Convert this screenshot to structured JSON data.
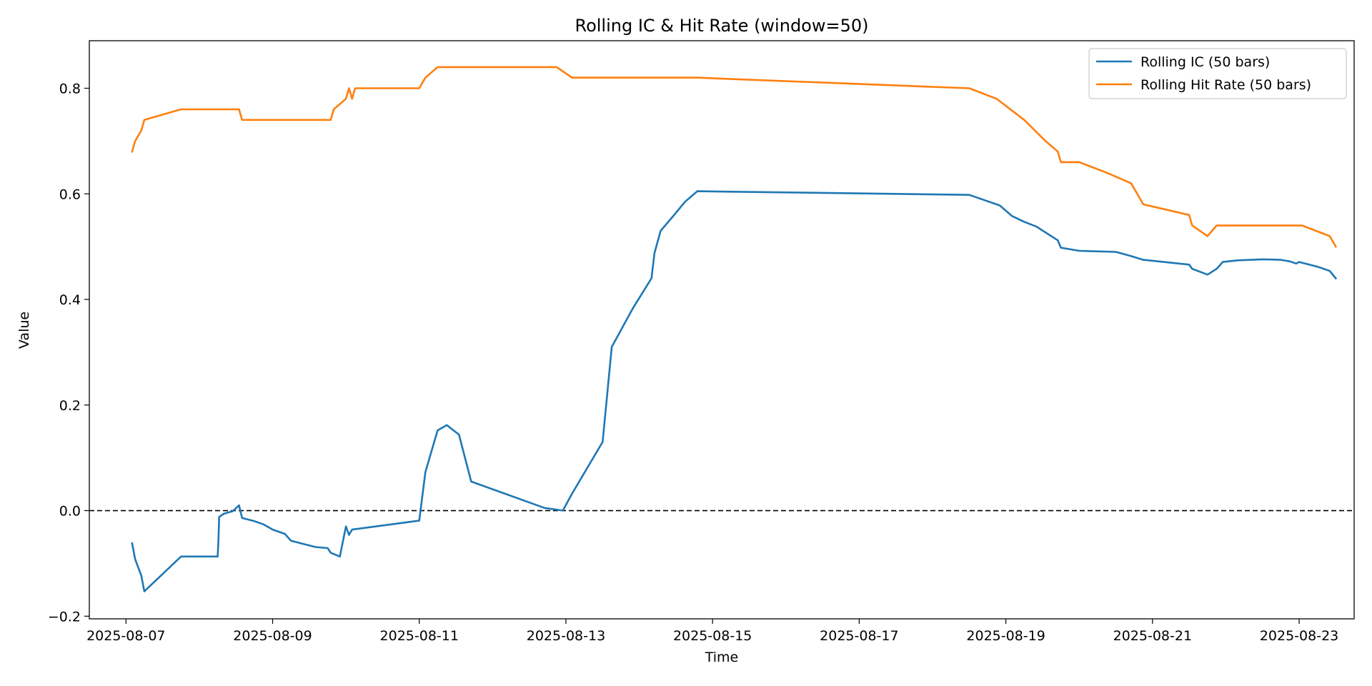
{
  "chart_data": {
    "type": "line",
    "title": "Rolling IC & Hit Rate (window=50)",
    "xlabel": "Time",
    "ylabel": "Value",
    "xlim": [
      "2025-08-06 12:00",
      "2025-08-23 18:00"
    ],
    "ylim": [
      -0.205,
      0.89
    ],
    "xticks": [
      "2025-08-07",
      "2025-08-09",
      "2025-08-11",
      "2025-08-13",
      "2025-08-15",
      "2025-08-17",
      "2025-08-19",
      "2025-08-21",
      "2025-08-23"
    ],
    "yticks": [
      -0.2,
      0.0,
      0.2,
      0.4,
      0.6,
      0.8
    ],
    "yticklabels": [
      "−0.2",
      "0.0",
      "0.2",
      "0.4",
      "0.6",
      "0.8"
    ],
    "grid": false,
    "legend": "top-right",
    "reference_line": {
      "y": 0.0,
      "style": "dashed",
      "color": "#000000"
    },
    "series": [
      {
        "name": "Rolling IC (50 bars)",
        "color": "#1f77b4",
        "points": [
          [
            "2025-08-07 02:00",
            -0.062
          ],
          [
            "2025-08-07 03:00",
            -0.092
          ],
          [
            "2025-08-07 05:00",
            -0.123
          ],
          [
            "2025-08-07 06:00",
            -0.153
          ],
          [
            "2025-08-07 18:00",
            -0.087
          ],
          [
            "2025-08-08 06:00",
            -0.087
          ],
          [
            "2025-08-08 06:15",
            -0.06
          ],
          [
            "2025-08-08 06:30",
            -0.012
          ],
          [
            "2025-08-08 08:00",
            -0.006
          ],
          [
            "2025-08-08 11:00",
            -0.001
          ],
          [
            "2025-08-08 13:00",
            0.01
          ],
          [
            "2025-08-08 14:00",
            -0.014
          ],
          [
            "2025-08-08 18:00",
            -0.02
          ],
          [
            "2025-08-08 21:00",
            -0.026
          ],
          [
            "2025-08-09 00:00",
            -0.036
          ],
          [
            "2025-08-09 04:00",
            -0.044
          ],
          [
            "2025-08-09 06:00",
            -0.057
          ],
          [
            "2025-08-09 14:00",
            -0.069
          ],
          [
            "2025-08-09 18:00",
            -0.071
          ],
          [
            "2025-08-09 19:00",
            -0.08
          ],
          [
            "2025-08-09 22:00",
            -0.087
          ],
          [
            "2025-08-10 00:00",
            -0.03
          ],
          [
            "2025-08-10 01:00",
            -0.046
          ],
          [
            "2025-08-10 02:00",
            -0.036
          ],
          [
            "2025-08-11 00:00",
            -0.019
          ],
          [
            "2025-08-11 02:00",
            0.073
          ],
          [
            "2025-08-11 06:00",
            0.152
          ],
          [
            "2025-08-11 09:00",
            0.162
          ],
          [
            "2025-08-11 13:00",
            0.144
          ],
          [
            "2025-08-11 17:00",
            0.055
          ],
          [
            "2025-08-12 17:00",
            0.005
          ],
          [
            "2025-08-12 23:00",
            0.0
          ],
          [
            "2025-08-13 02:00",
            0.032
          ],
          [
            "2025-08-13 12:00",
            0.13
          ],
          [
            "2025-08-13 15:00",
            0.31
          ],
          [
            "2025-08-13 22:00",
            0.384
          ],
          [
            "2025-08-14 04:00",
            0.44
          ],
          [
            "2025-08-14 05:00",
            0.488
          ],
          [
            "2025-08-14 07:00",
            0.53
          ],
          [
            "2025-08-14 11:00",
            0.557
          ],
          [
            "2025-08-14 15:00",
            0.585
          ],
          [
            "2025-08-14 19:00",
            0.605
          ],
          [
            "2025-08-18 12:00",
            0.598
          ],
          [
            "2025-08-18 22:00",
            0.578
          ],
          [
            "2025-08-19 02:00",
            0.558
          ],
          [
            "2025-08-19 06:00",
            0.547
          ],
          [
            "2025-08-19 10:00",
            0.538
          ],
          [
            "2025-08-19 17:00",
            0.512
          ],
          [
            "2025-08-19 18:00",
            0.498
          ],
          [
            "2025-08-20 00:00",
            0.492
          ],
          [
            "2025-08-20 12:00",
            0.49
          ],
          [
            "2025-08-20 17:00",
            0.482
          ],
          [
            "2025-08-20 21:00",
            0.475
          ],
          [
            "2025-08-21 12:00",
            0.466
          ],
          [
            "2025-08-21 13:00",
            0.458
          ],
          [
            "2025-08-21 18:00",
            0.447
          ],
          [
            "2025-08-21 21:00",
            0.458
          ],
          [
            "2025-08-21 23:00",
            0.471
          ],
          [
            "2025-08-22 04:00",
            0.474
          ],
          [
            "2025-08-22 12:00",
            0.476
          ],
          [
            "2025-08-22 18:00",
            0.475
          ],
          [
            "2025-08-22 21:00",
            0.472
          ],
          [
            "2025-08-22 23:00",
            0.468
          ],
          [
            "2025-08-23 00:00",
            0.471
          ],
          [
            "2025-08-23 06:00",
            0.462
          ],
          [
            "2025-08-23 10:00",
            0.454
          ],
          [
            "2025-08-23 12:00",
            0.44
          ]
        ]
      },
      {
        "name": "Rolling Hit Rate (50 bars)",
        "color": "#ff7f0e",
        "points": [
          [
            "2025-08-07 02:00",
            0.68
          ],
          [
            "2025-08-07 03:00",
            0.7
          ],
          [
            "2025-08-07 05:00",
            0.72
          ],
          [
            "2025-08-07 06:00",
            0.74
          ],
          [
            "2025-08-07 18:00",
            0.76
          ],
          [
            "2025-08-08 13:00",
            0.76
          ],
          [
            "2025-08-08 14:00",
            0.74
          ],
          [
            "2025-08-09 19:00",
            0.74
          ],
          [
            "2025-08-09 20:00",
            0.76
          ],
          [
            "2025-08-10 00:00",
            0.78
          ],
          [
            "2025-08-10 01:00",
            0.8
          ],
          [
            "2025-08-10 02:00",
            0.78
          ],
          [
            "2025-08-10 03:00",
            0.8
          ],
          [
            "2025-08-11 00:00",
            0.8
          ],
          [
            "2025-08-11 02:00",
            0.82
          ],
          [
            "2025-08-11 06:00",
            0.84
          ],
          [
            "2025-08-12 21:00",
            0.84
          ],
          [
            "2025-08-13 02:00",
            0.82
          ],
          [
            "2025-08-14 19:00",
            0.82
          ],
          [
            "2025-08-18 12:00",
            0.8
          ],
          [
            "2025-08-18 21:00",
            0.78
          ],
          [
            "2025-08-19 06:00",
            0.74
          ],
          [
            "2025-08-19 13:00",
            0.7
          ],
          [
            "2025-08-19 17:00",
            0.68
          ],
          [
            "2025-08-19 18:00",
            0.66
          ],
          [
            "2025-08-20 00:00",
            0.66
          ],
          [
            "2025-08-20 09:00",
            0.64
          ],
          [
            "2025-08-20 17:00",
            0.62
          ],
          [
            "2025-08-20 21:00",
            0.58
          ],
          [
            "2025-08-21 12:00",
            0.56
          ],
          [
            "2025-08-21 13:00",
            0.54
          ],
          [
            "2025-08-21 18:00",
            0.52
          ],
          [
            "2025-08-21 21:00",
            0.54
          ],
          [
            "2025-08-23 01:00",
            0.54
          ],
          [
            "2025-08-23 10:00",
            0.52
          ],
          [
            "2025-08-23 12:00",
            0.5
          ]
        ]
      }
    ]
  }
}
